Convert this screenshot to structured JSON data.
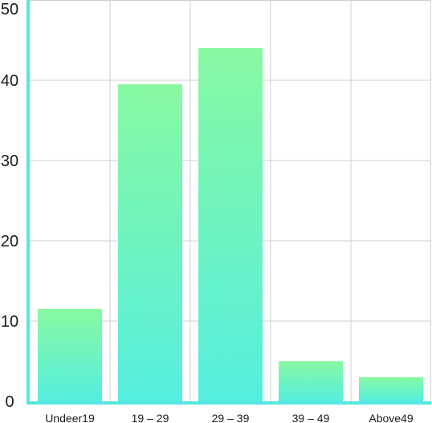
{
  "colors": {
    "axis": "#55E7E0",
    "grid": "#cfcfcf",
    "bar_top": "#88F9A2",
    "bar_bottom": "#55EEDF",
    "text": "#1a1a1a"
  },
  "chart_data": {
    "type": "bar",
    "title": "",
    "xlabel": "",
    "ylabel": "",
    "ylim": [
      0,
      50
    ],
    "yticks": [
      "0",
      "10",
      "20",
      "30",
      "40",
      "50"
    ],
    "categories": [
      "Undeer19",
      "19 – 29",
      "29 – 39",
      "39 – 49",
      "Above49"
    ],
    "values": [
      11.5,
      39.5,
      44,
      5,
      3
    ],
    "grid": true,
    "legend": "none"
  }
}
